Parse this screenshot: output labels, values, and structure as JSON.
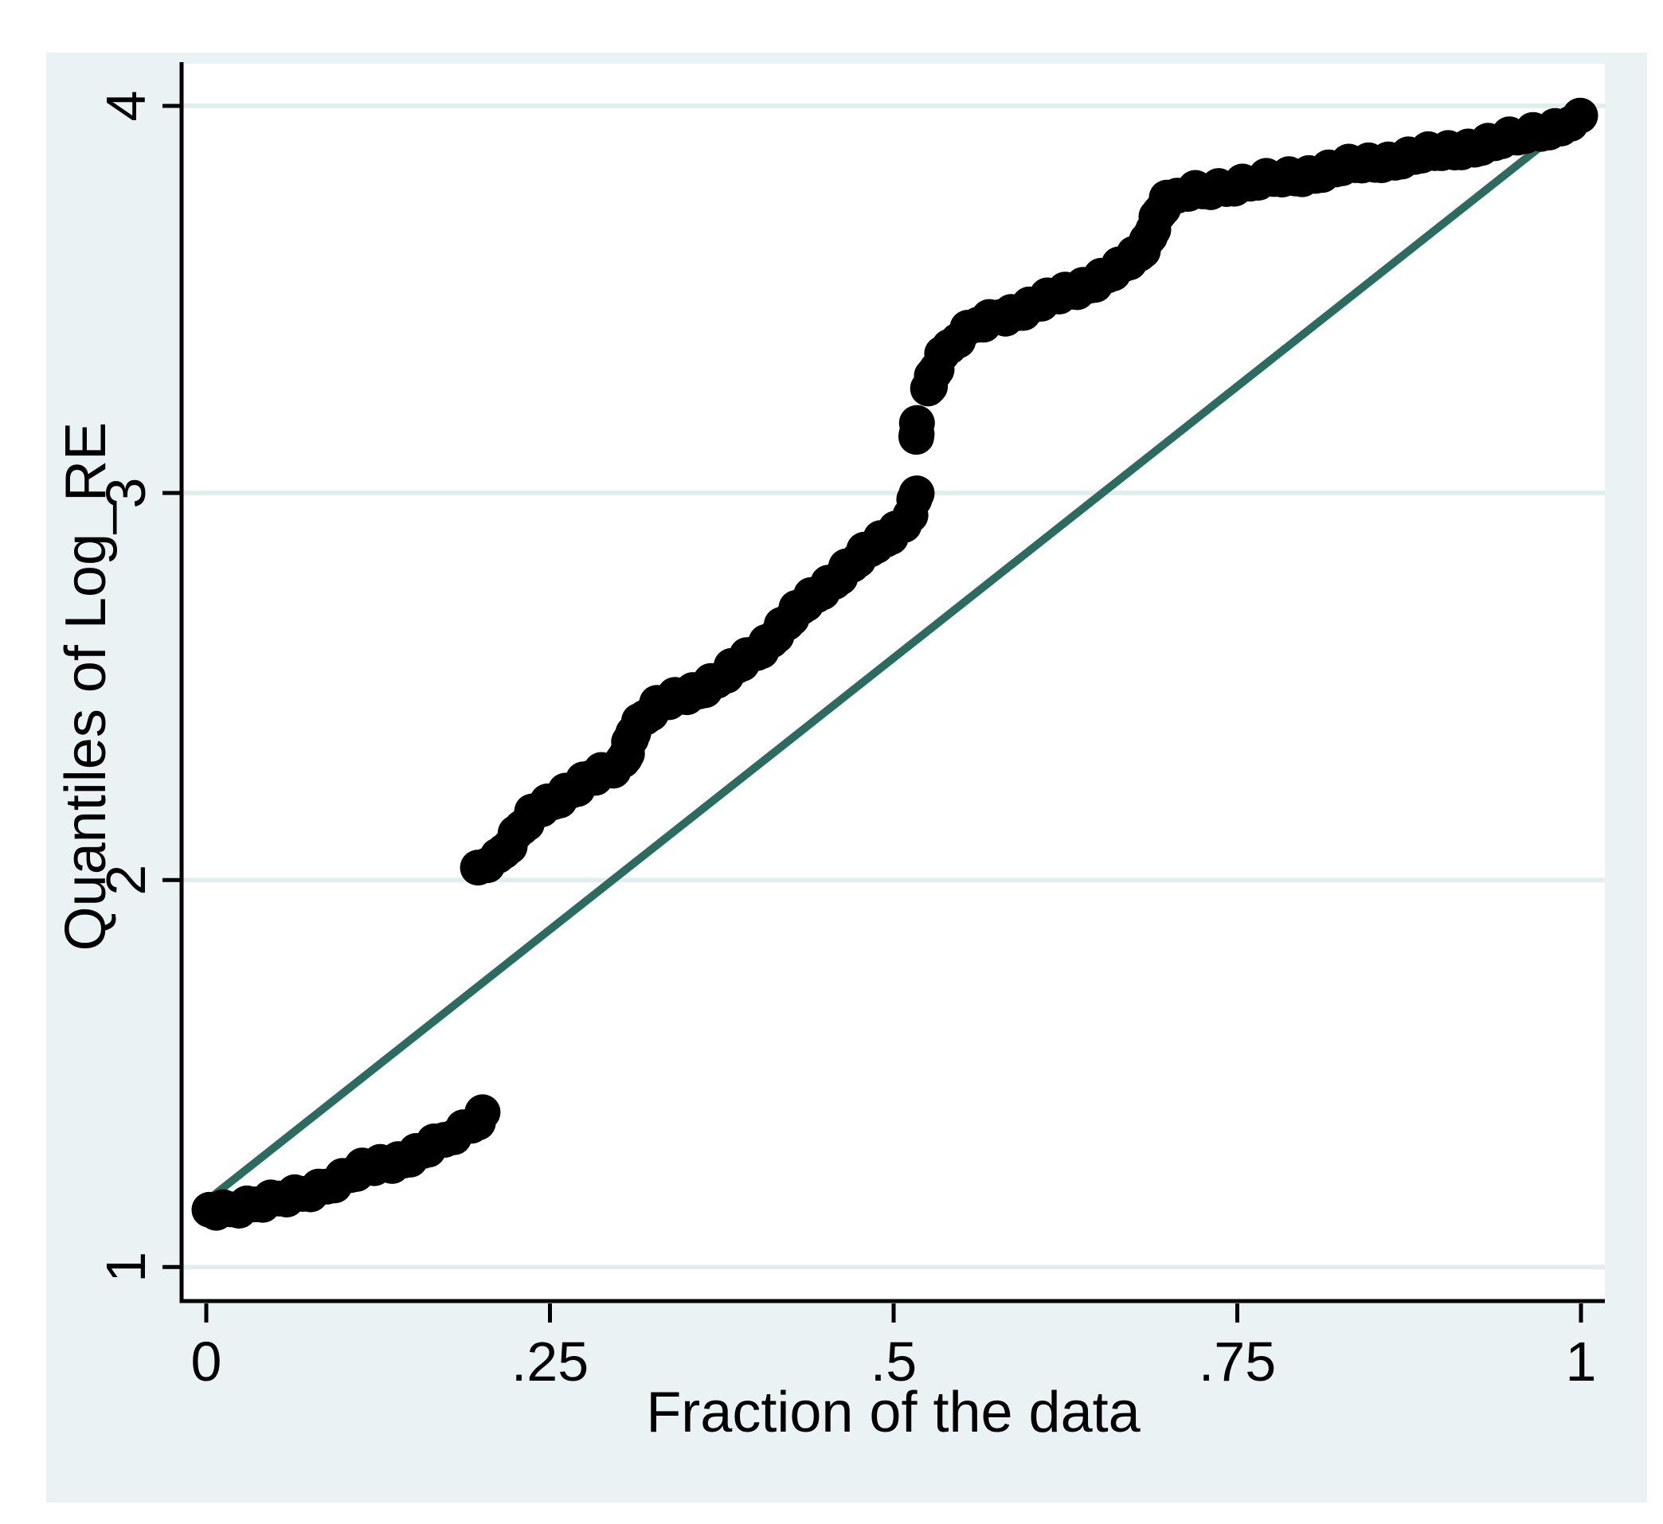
{
  "colors": {
    "page_bg": "#ffffff",
    "canvas_bg": "#eaf2f3",
    "plot_bg": "#ffffff",
    "grid": "#e3edef",
    "axis": "#000000",
    "marker": "#000000",
    "reference_line": "#2d6b61"
  },
  "chart_data": {
    "type": "scatter",
    "title": "",
    "xlabel": "Fraction of the data",
    "ylabel": "Quantiles of Log_RE",
    "xlim": [
      0,
      1
    ],
    "ylim": [
      1,
      4
    ],
    "grid": "on",
    "legend": "none",
    "x_ticks": [
      {
        "value": 0,
        "label": "0"
      },
      {
        "value": 0.25,
        "label": ".25"
      },
      {
        "value": 0.5,
        "label": ".5"
      },
      {
        "value": 0.75,
        "label": ".75"
      },
      {
        "value": 1,
        "label": "1"
      }
    ],
    "y_ticks": [
      {
        "value": 1,
        "label": "1"
      },
      {
        "value": 2,
        "label": "2"
      },
      {
        "value": 3,
        "label": "3"
      },
      {
        "value": 4,
        "label": "4"
      }
    ],
    "reference_line": {
      "name": "diagonal",
      "points": [
        [
          0.002,
          1.176
        ],
        [
          0.995,
          3.963
        ]
      ]
    },
    "series": [
      {
        "name": "Quantiles of Log_RE",
        "marker": "circle",
        "segments": [
          [
            [
              0.0023,
              1.148
            ],
            [
              0.0122,
              1.152
            ],
            [
              0.0238,
              1.157
            ],
            [
              0.0353,
              1.162
            ],
            [
              0.0469,
              1.168
            ],
            [
              0.0585,
              1.177
            ],
            [
              0.0701,
              1.19
            ],
            [
              0.0817,
              1.205
            ],
            [
              0.0933,
              1.222
            ],
            [
              0.1049,
              1.238
            ],
            [
              0.1135,
              1.25
            ],
            [
              0.1222,
              1.258
            ],
            [
              0.1309,
              1.266
            ],
            [
              0.1396,
              1.276
            ],
            [
              0.1483,
              1.288
            ],
            [
              0.157,
              1.3
            ],
            [
              0.1657,
              1.312
            ],
            [
              0.1732,
              1.325
            ],
            [
              0.1802,
              1.338
            ],
            [
              0.1871,
              1.352
            ],
            [
              0.1929,
              1.368
            ],
            [
              0.1976,
              1.383
            ],
            [
              0.201,
              1.397
            ]
          ],
          [
            [
              0.1976,
              2.032
            ],
            [
              0.2045,
              2.048
            ],
            [
              0.2121,
              2.06
            ],
            [
              0.2207,
              2.098
            ],
            [
              0.2294,
              2.135
            ],
            [
              0.237,
              2.165
            ],
            [
              0.2439,
              2.185
            ],
            [
              0.2526,
              2.202
            ],
            [
              0.2613,
              2.228
            ],
            [
              0.27,
              2.246
            ],
            [
              0.2787,
              2.263
            ],
            [
              0.2874,
              2.272
            ],
            [
              0.2961,
              2.285
            ],
            [
              0.303,
              2.3
            ],
            [
              0.3106,
              2.39
            ],
            [
              0.3192,
              2.42
            ],
            [
              0.3279,
              2.445
            ],
            [
              0.3366,
              2.462
            ],
            [
              0.3453,
              2.476
            ],
            [
              0.354,
              2.488
            ],
            [
              0.3627,
              2.5
            ],
            [
              0.3714,
              2.515
            ],
            [
              0.3783,
              2.53
            ],
            [
              0.3859,
              2.55
            ],
            [
              0.3934,
              2.572
            ],
            [
              0.4004,
              2.59
            ],
            [
              0.4073,
              2.612
            ],
            [
              0.4148,
              2.64
            ],
            [
              0.4224,
              2.665
            ],
            [
              0.4293,
              2.69
            ],
            [
              0.4363,
              2.715
            ],
            [
              0.4438,
              2.74
            ],
            [
              0.4525,
              2.765
            ],
            [
              0.4612,
              2.79
            ],
            [
              0.4699,
              2.815
            ],
            [
              0.4786,
              2.84
            ],
            [
              0.4873,
              2.865
            ],
            [
              0.4942,
              2.885
            ],
            [
              0.5017,
              2.905
            ],
            [
              0.5075,
              2.925
            ],
            [
              0.5122,
              2.95
            ],
            [
              0.515,
              2.975
            ],
            [
              0.5168,
              3.0
            ]
          ],
          [
            [
              0.5165,
              3.145
            ],
            [
              0.517,
              3.178
            ]
          ],
          [
            [
              0.525,
              3.27
            ],
            [
              0.5278,
              3.3
            ],
            [
              0.5313,
              3.33
            ],
            [
              0.5353,
              3.355
            ],
            [
              0.5406,
              3.378
            ],
            [
              0.5469,
              3.398
            ],
            [
              0.5539,
              3.415
            ],
            [
              0.5614,
              3.43
            ],
            [
              0.5695,
              3.445
            ],
            [
              0.5771,
              3.455
            ],
            [
              0.5857,
              3.465
            ],
            [
              0.5944,
              3.476
            ],
            [
              0.6031,
              3.487
            ],
            [
              0.6118,
              3.498
            ],
            [
              0.6205,
              3.51
            ],
            [
              0.6292,
              3.522
            ],
            [
              0.6379,
              3.535
            ],
            [
              0.6466,
              3.548
            ],
            [
              0.6553,
              3.562
            ],
            [
              0.664,
              3.578
            ],
            [
              0.6715,
              3.598
            ],
            [
              0.6784,
              3.62
            ],
            [
              0.6842,
              3.65
            ],
            [
              0.6889,
              3.69
            ],
            [
              0.6935,
              3.725
            ],
            [
              0.6987,
              3.75
            ],
            [
              0.7062,
              3.765
            ],
            [
              0.7143,
              3.775
            ],
            [
              0.7248,
              3.783
            ],
            [
              0.7364,
              3.79
            ],
            [
              0.748,
              3.795
            ],
            [
              0.7595,
              3.8
            ],
            [
              0.7711,
              3.806
            ],
            [
              0.7827,
              3.812
            ],
            [
              0.7972,
              3.82
            ],
            [
              0.8117,
              3.83
            ],
            [
              0.8262,
              3.84
            ],
            [
              0.8407,
              3.848
            ],
            [
              0.8551,
              3.856
            ],
            [
              0.8696,
              3.864
            ],
            [
              0.8841,
              3.872
            ],
            [
              0.8986,
              3.88
            ],
            [
              0.9131,
              3.889
            ],
            [
              0.9276,
              3.898
            ],
            [
              0.9421,
              3.908
            ],
            [
              0.9537,
              3.918
            ],
            [
              0.9652,
              3.93
            ],
            [
              0.9768,
              3.94
            ],
            [
              0.9855,
              3.95
            ],
            [
              0.9925,
              3.96
            ],
            [
              0.9994,
              3.966
            ]
          ]
        ]
      }
    ]
  }
}
